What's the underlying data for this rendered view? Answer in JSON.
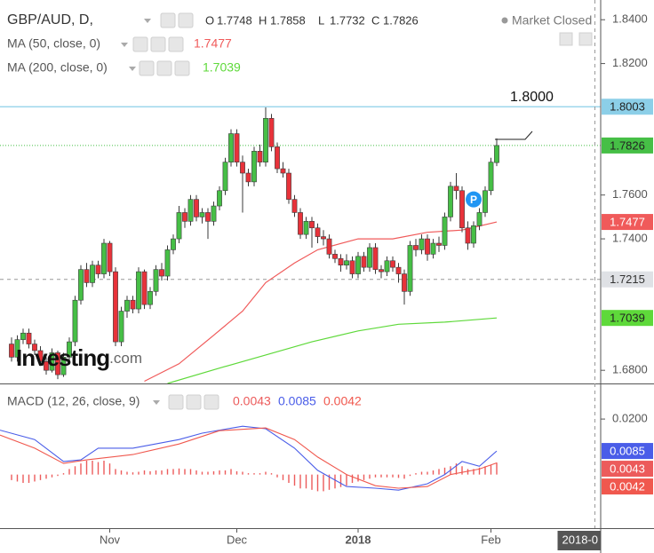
{
  "chart_data": [
    {
      "type": "candlestick",
      "title": "GBP/AUD, D,",
      "status": "Market Closed",
      "ohlc_labels": [
        "O",
        "H",
        "L",
        "C"
      ],
      "xlim": [
        -2,
        102
      ],
      "xticks": [
        {
          "value": 17,
          "label": "Nov"
        },
        {
          "value": 39,
          "label": "Dec"
        },
        {
          "value": 60,
          "label": "2018"
        },
        {
          "value": 83,
          "label": "Feb"
        }
      ],
      "ylim": [
        1.674,
        1.849
      ],
      "yticks": [
        {
          "value": 1.68,
          "label": "1.6800"
        },
        {
          "value": 1.74,
          "label": "1.7400"
        },
        {
          "value": 1.76,
          "label": "1.7600"
        },
        {
          "value": 1.82,
          "label": "1.8200"
        },
        {
          "value": 1.84,
          "label": "1.8400"
        }
      ],
      "grid": false,
      "candles": {
        "up_color": "#46bf46",
        "down_color": "#e8323a",
        "open": [
          1.692,
          1.686,
          1.694,
          1.697,
          1.692,
          1.689,
          1.684,
          1.68,
          1.688,
          1.678,
          1.686,
          1.693,
          1.712,
          1.726,
          1.72,
          1.728,
          1.724,
          1.738,
          1.725,
          1.693,
          1.707,
          1.712,
          1.708,
          1.725,
          1.71,
          1.716,
          1.726,
          1.723,
          1.735,
          1.74,
          1.752,
          1.748,
          1.758,
          1.75,
          1.752,
          1.748,
          1.755,
          1.762,
          1.775,
          1.788,
          1.775,
          1.77,
          1.766,
          1.78,
          1.775,
          1.795,
          1.782,
          1.772,
          1.77,
          1.758,
          1.752,
          1.742,
          1.748,
          1.745,
          1.741,
          1.74,
          1.733,
          1.731,
          1.728,
          1.73,
          1.724,
          1.732,
          1.727,
          1.736,
          1.726,
          1.725,
          1.73,
          1.727,
          1.724,
          1.716,
          1.737,
          1.735,
          1.74,
          1.733,
          1.738,
          1.737,
          1.75,
          1.764,
          1.762,
          1.745,
          1.738,
          1.746,
          1.752,
          1.762,
          1.7748
        ],
        "high": [
          1.695,
          1.696,
          1.699,
          1.699,
          1.694,
          1.691,
          1.686,
          1.69,
          1.689,
          1.688,
          1.695,
          1.714,
          1.728,
          1.729,
          1.73,
          1.73,
          1.74,
          1.739,
          1.727,
          1.709,
          1.714,
          1.714,
          1.727,
          1.726,
          1.718,
          1.728,
          1.729,
          1.737,
          1.742,
          1.755,
          1.754,
          1.76,
          1.76,
          1.754,
          1.754,
          1.757,
          1.764,
          1.777,
          1.79,
          1.79,
          1.778,
          1.772,
          1.782,
          1.783,
          1.8,
          1.797,
          1.784,
          1.775,
          1.772,
          1.76,
          1.754,
          1.75,
          1.75,
          1.747,
          1.744,
          1.742,
          1.735,
          1.733,
          1.733,
          1.732,
          1.734,
          1.734,
          1.738,
          1.738,
          1.728,
          1.732,
          1.732,
          1.729,
          1.726,
          1.739,
          1.74,
          1.742,
          1.742,
          1.74,
          1.741,
          1.752,
          1.766,
          1.77,
          1.764,
          1.748,
          1.748,
          1.754,
          1.764,
          1.777,
          1.7858
        ],
        "low": [
          1.684,
          1.684,
          1.692,
          1.69,
          1.687,
          1.682,
          1.678,
          1.679,
          1.676,
          1.677,
          1.684,
          1.691,
          1.71,
          1.718,
          1.718,
          1.722,
          1.722,
          1.723,
          1.691,
          1.691,
          1.704,
          1.706,
          1.706,
          1.708,
          1.708,
          1.714,
          1.721,
          1.721,
          1.733,
          1.738,
          1.745,
          1.746,
          1.748,
          1.747,
          1.74,
          1.746,
          1.753,
          1.76,
          1.773,
          1.773,
          1.752,
          1.764,
          1.764,
          1.773,
          1.773,
          1.78,
          1.77,
          1.768,
          1.756,
          1.75,
          1.74,
          1.74,
          1.736,
          1.738,
          1.737,
          1.731,
          1.729,
          1.725,
          1.726,
          1.722,
          1.722,
          1.725,
          1.725,
          1.724,
          1.722,
          1.723,
          1.725,
          1.72,
          1.71,
          1.714,
          1.732,
          1.733,
          1.73,
          1.731,
          1.734,
          1.735,
          1.748,
          1.758,
          1.743,
          1.735,
          1.736,
          1.744,
          1.75,
          1.76,
          1.7732
        ],
        "close": [
          1.686,
          1.694,
          1.697,
          1.692,
          1.689,
          1.684,
          1.68,
          1.688,
          1.678,
          1.686,
          1.693,
          1.712,
          1.726,
          1.72,
          1.728,
          1.724,
          1.738,
          1.725,
          1.693,
          1.707,
          1.712,
          1.708,
          1.725,
          1.71,
          1.716,
          1.726,
          1.723,
          1.735,
          1.74,
          1.752,
          1.748,
          1.758,
          1.75,
          1.752,
          1.748,
          1.755,
          1.762,
          1.775,
          1.788,
          1.775,
          1.77,
          1.766,
          1.78,
          1.775,
          1.795,
          1.782,
          1.772,
          1.77,
          1.758,
          1.752,
          1.742,
          1.748,
          1.745,
          1.741,
          1.74,
          1.733,
          1.731,
          1.728,
          1.73,
          1.724,
          1.732,
          1.727,
          1.736,
          1.726,
          1.725,
          1.73,
          1.727,
          1.724,
          1.716,
          1.737,
          1.735,
          1.74,
          1.733,
          1.738,
          1.737,
          1.75,
          1.764,
          1.762,
          1.745,
          1.738,
          1.746,
          1.752,
          1.762,
          1.775,
          1.7826
        ]
      },
      "series": [
        {
          "name": "MA (50, close, 0)",
          "color": "#f05a5a",
          "x": [
            23,
            29,
            35,
            40,
            44,
            49,
            53,
            60,
            66,
            72,
            78,
            84
          ],
          "values": [
            1.675,
            1.683,
            1.696,
            1.707,
            1.72,
            1.729,
            1.735,
            1.74,
            1.74,
            1.743,
            1.744,
            1.7477
          ]
        },
        {
          "name": "MA (200, close, 0)",
          "color": "#5ed93a",
          "x": [
            27,
            36,
            44,
            52,
            60,
            67,
            75,
            84
          ],
          "values": [
            1.674,
            1.681,
            1.687,
            1.693,
            1.698,
            1.701,
            1.702,
            1.7039
          ]
        }
      ],
      "hline": {
        "value": 1.8003,
        "color": "#8ccfe8"
      },
      "annotation": "1.8000",
      "marker": {
        "label": "P",
        "x": 80,
        "y": 1.758
      },
      "crosshair": {
        "x": 101,
        "y": 1.7215,
        "x_label": "2018-0"
      },
      "watermark": "Investing",
      "watermark_suffix": ".com"
    },
    {
      "type": "macd",
      "title": "MACD (12, 26, close, 9)",
      "xlim": [
        -2,
        102
      ],
      "ylim": [
        -0.0193,
        0.0325
      ],
      "yticks": [
        {
          "value": 0.02,
          "label": "0.0200"
        }
      ],
      "histogram": {
        "color": "#ec5b5b",
        "values": [
          -0.002,
          -0.0025,
          -0.003,
          -0.003,
          -0.0025,
          -0.002,
          -0.0015,
          -0.001,
          -0.0005,
          0.0005,
          0.002,
          0.003,
          0.004,
          0.005,
          0.005,
          0.0045,
          0.005,
          0.004,
          0.002,
          0.0015,
          0.001,
          0.0008,
          0.001,
          0.0015,
          0.0012,
          0.0015,
          0.0015,
          0.002,
          0.002,
          0.0022,
          0.002,
          0.002,
          0.0015,
          0.001,
          0.001,
          0.0012,
          0.0015,
          0.0015,
          0.002,
          0.0012,
          0.001,
          0.0005,
          0.0005,
          0.0005,
          0.001,
          0.0005,
          -0.001,
          -0.002,
          -0.003,
          -0.004,
          -0.005,
          -0.005,
          -0.0055,
          -0.006,
          -0.006,
          -0.0055,
          -0.005,
          -0.0045,
          -0.004,
          -0.003,
          -0.0025,
          -0.002,
          -0.0015,
          -0.001,
          -0.001,
          -0.001,
          -0.001,
          -0.0012,
          -0.0015,
          -0.0005,
          0.0005,
          0.001,
          0.001,
          0.0015,
          0.002,
          0.0025,
          0.003,
          0.004,
          0.003,
          0.002,
          0.002,
          0.0025,
          0.003,
          0.0035,
          0.0043
        ]
      },
      "series": [
        {
          "color": "#4a5de8",
          "x": [
            -2,
            4,
            9,
            12,
            15,
            21,
            29,
            33,
            40,
            44,
            49,
            53,
            58,
            63,
            67,
            72,
            75,
            78,
            81,
            84
          ],
          "values": [
            0.016,
            0.0126,
            0.0047,
            0.0053,
            0.0095,
            0.0095,
            0.0126,
            0.0149,
            0.0174,
            0.0165,
            0.0095,
            0.0015,
            -0.0043,
            -0.0049,
            -0.0056,
            -0.0033,
            0,
            0.0047,
            0.003,
            0.0085
          ]
        },
        {
          "color": "#f0584e",
          "x": [
            -2,
            4,
            9,
            13,
            21,
            29,
            36,
            44,
            49,
            53,
            58,
            63,
            67,
            72,
            76,
            81,
            84
          ],
          "values": [
            0.0142,
            0.0095,
            0.004,
            0.0053,
            0.0072,
            0.011,
            0.0158,
            0.0168,
            0.0126,
            0.0063,
            0,
            -0.004,
            -0.0049,
            -0.0043,
            0,
            0.002,
            0.0042
          ]
        }
      ]
    }
  ]
}
